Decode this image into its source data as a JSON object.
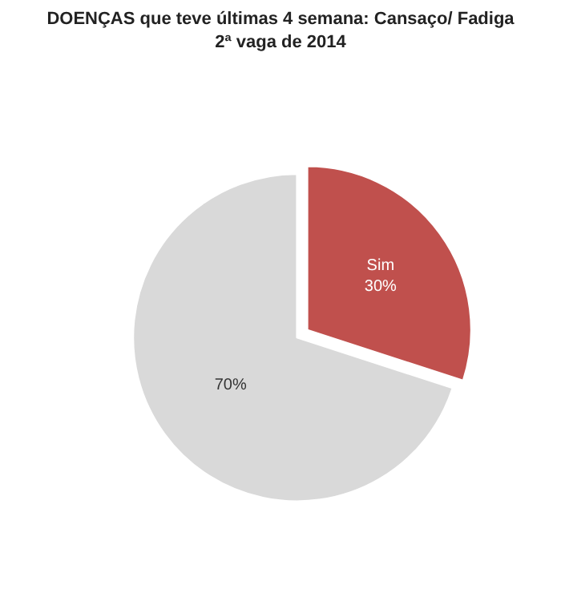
{
  "chart_data": {
    "type": "pie",
    "title": "DOENÇAS que teve últimas 4 semana: Cansaço/ Fadiga",
    "subtitle": "2ª vaga de 2014",
    "categories": [
      "Sim",
      null
    ],
    "values": [
      30,
      70
    ],
    "colors": [
      "#c0504d",
      "#d9d9d9"
    ],
    "value_labels": [
      "30%",
      "70%"
    ],
    "legend": false
  }
}
